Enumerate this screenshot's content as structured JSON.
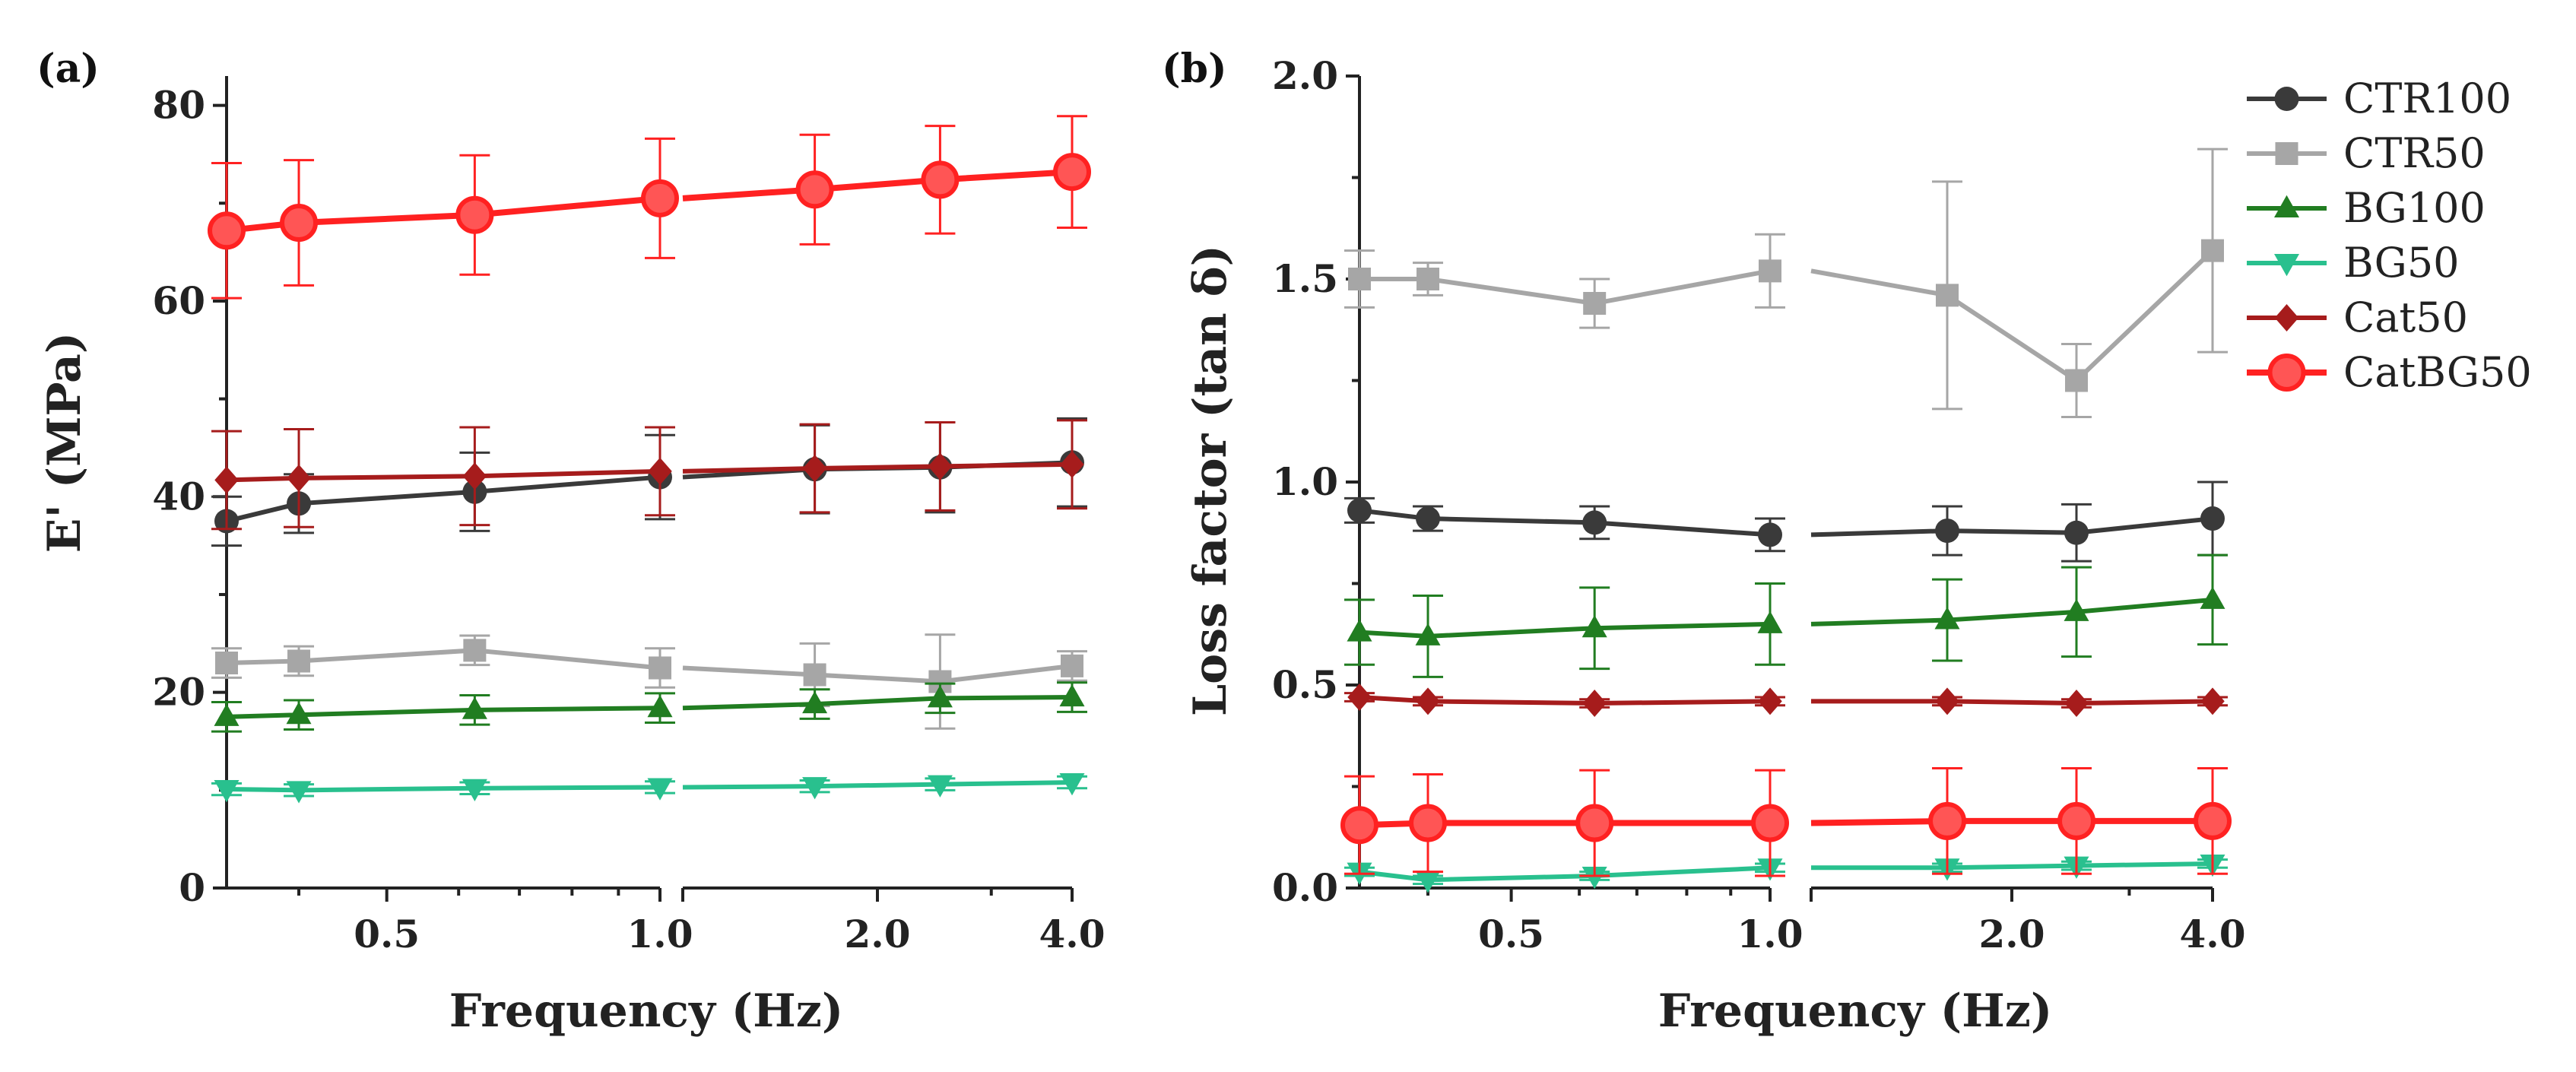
{
  "chart_data": [
    {
      "type": "line",
      "panel_label": "(a)",
      "xlabel": "Frequency (Hz)",
      "ylabel": "E' (MPa)",
      "ylim": [
        0,
        83
      ],
      "x_scale": "log",
      "x_segments": [
        [
          0.333,
          1.0
        ],
        [
          1.0,
          4.0
        ]
      ],
      "x": [
        0.333,
        0.4,
        0.625,
        1.0,
        1.6,
        2.5,
        4.0
      ],
      "x_ticks": [
        0.5,
        1.0,
        2.0,
        4.0
      ],
      "x_tick_labels": [
        "0.5",
        "1.0",
        "2.0",
        "4.0"
      ],
      "y_ticks": [
        0,
        20,
        40,
        60,
        80
      ],
      "y_tick_labels": [
        "0",
        "20",
        "40",
        "60",
        "80"
      ],
      "series": [
        {
          "name": "CTR100",
          "color": "#3a3a3a",
          "marker": "circle",
          "values": [
            37.5,
            39.3,
            40.5,
            42,
            42.8,
            43,
            43.5
          ],
          "errors": [
            2.5,
            3,
            4,
            4.3,
            4.5,
            4.6,
            4.5
          ]
        },
        {
          "name": "CTR50",
          "color": "#a6a6a6",
          "marker": "square",
          "values": [
            23,
            23.2,
            24.3,
            22.5,
            21.8,
            21.1,
            22.7
          ],
          "errors": [
            1.5,
            1.5,
            1.5,
            2,
            3.2,
            4.8,
            1.5
          ]
        },
        {
          "name": "BG100",
          "color": "#217d21",
          "marker": "triangle-up",
          "values": [
            17.5,
            17.7,
            18.2,
            18.4,
            18.8,
            19.4,
            19.5
          ],
          "errors": [
            1.5,
            1.5,
            1.5,
            1.5,
            1.5,
            1.5,
            1.5
          ]
        },
        {
          "name": "BG50",
          "color": "#29c08e",
          "marker": "triangle-down",
          "values": [
            10.1,
            10,
            10.2,
            10.3,
            10.4,
            10.6,
            10.8
          ],
          "errors": [
            0.6,
            0.6,
            0.6,
            0.6,
            0.6,
            0.6,
            0.6
          ]
        },
        {
          "name": "Cat50",
          "color": "#a61c1c",
          "marker": "diamond",
          "values": [
            41.7,
            41.9,
            42.1,
            42.6,
            42.9,
            43.1,
            43.3
          ],
          "errors": [
            5,
            5,
            5,
            4.5,
            4.5,
            4.5,
            4.5
          ]
        },
        {
          "name": "CatBG50",
          "color": "#ff2121",
          "marker": "circle",
          "values": [
            67.2,
            68,
            68.8,
            70.5,
            71.4,
            72.4,
            73.2
          ],
          "errors": [
            6.9,
            6.4,
            6.1,
            6.1,
            5.6,
            5.5,
            5.7
          ]
        }
      ]
    },
    {
      "type": "line",
      "panel_label": "(b)",
      "xlabel": "Frequency (Hz)",
      "ylabel": "Loss factor (tan  δ)",
      "ylim": [
        0,
        2.0
      ],
      "x_scale": "log",
      "x_segments": [
        [
          0.333,
          1.0
        ],
        [
          1.0,
          4.0
        ]
      ],
      "x": [
        0.333,
        0.4,
        0.625,
        1.0,
        1.6,
        2.5,
        4.0
      ],
      "x_ticks": [
        0.5,
        1.0,
        2.0,
        4.0
      ],
      "x_tick_labels": [
        "0.5",
        "1.0",
        "2.0",
        "4.0"
      ],
      "y_ticks": [
        0,
        0.5,
        1.0,
        1.5,
        2.0
      ],
      "y_tick_labels": [
        "0.0",
        "0.5",
        "1.0",
        "1.5",
        "2.0"
      ],
      "series": [
        {
          "name": "CTR100",
          "color": "#3a3a3a",
          "marker": "circle",
          "values": [
            0.93,
            0.91,
            0.9,
            0.87,
            0.88,
            0.875,
            0.91
          ],
          "errors": [
            0.03,
            0.03,
            0.04,
            0.04,
            0.06,
            0.07,
            0.09
          ]
        },
        {
          "name": "CTR50",
          "color": "#a6a6a6",
          "marker": "square",
          "values": [
            1.5,
            1.5,
            1.44,
            1.52,
            1.46,
            1.25,
            1.57
          ],
          "errors": [
            0.07,
            0.04,
            0.06,
            0.09,
            0.28,
            0.09,
            0.25
          ]
        },
        {
          "name": "BG100",
          "color": "#217d21",
          "marker": "triangle-up",
          "values": [
            0.63,
            0.62,
            0.64,
            0.65,
            0.66,
            0.68,
            0.71
          ],
          "errors": [
            0.08,
            0.1,
            0.1,
            0.1,
            0.1,
            0.11,
            0.11
          ]
        },
        {
          "name": "BG50",
          "color": "#29c08e",
          "marker": "triangle-down",
          "values": [
            0.04,
            0.02,
            0.03,
            0.05,
            0.05,
            0.055,
            0.06
          ],
          "errors": [
            0.01,
            0.01,
            0.01,
            0.01,
            0.01,
            0.01,
            0.01
          ]
        },
        {
          "name": "Cat50",
          "color": "#a61c1c",
          "marker": "diamond",
          "values": [
            0.47,
            0.46,
            0.455,
            0.46,
            0.46,
            0.455,
            0.46
          ],
          "errors": [
            0.01,
            0.01,
            0.01,
            0.01,
            0.01,
            0.01,
            0.01
          ]
        },
        {
          "name": "CatBG50",
          "color": "#ff2121",
          "marker": "circle",
          "values": [
            0.155,
            0.16,
            0.16,
            0.16,
            0.165,
            0.165,
            0.165
          ],
          "errors": [
            0.12,
            0.12,
            0.13,
            0.13,
            0.13,
            0.13,
            0.13
          ]
        }
      ]
    }
  ]
}
